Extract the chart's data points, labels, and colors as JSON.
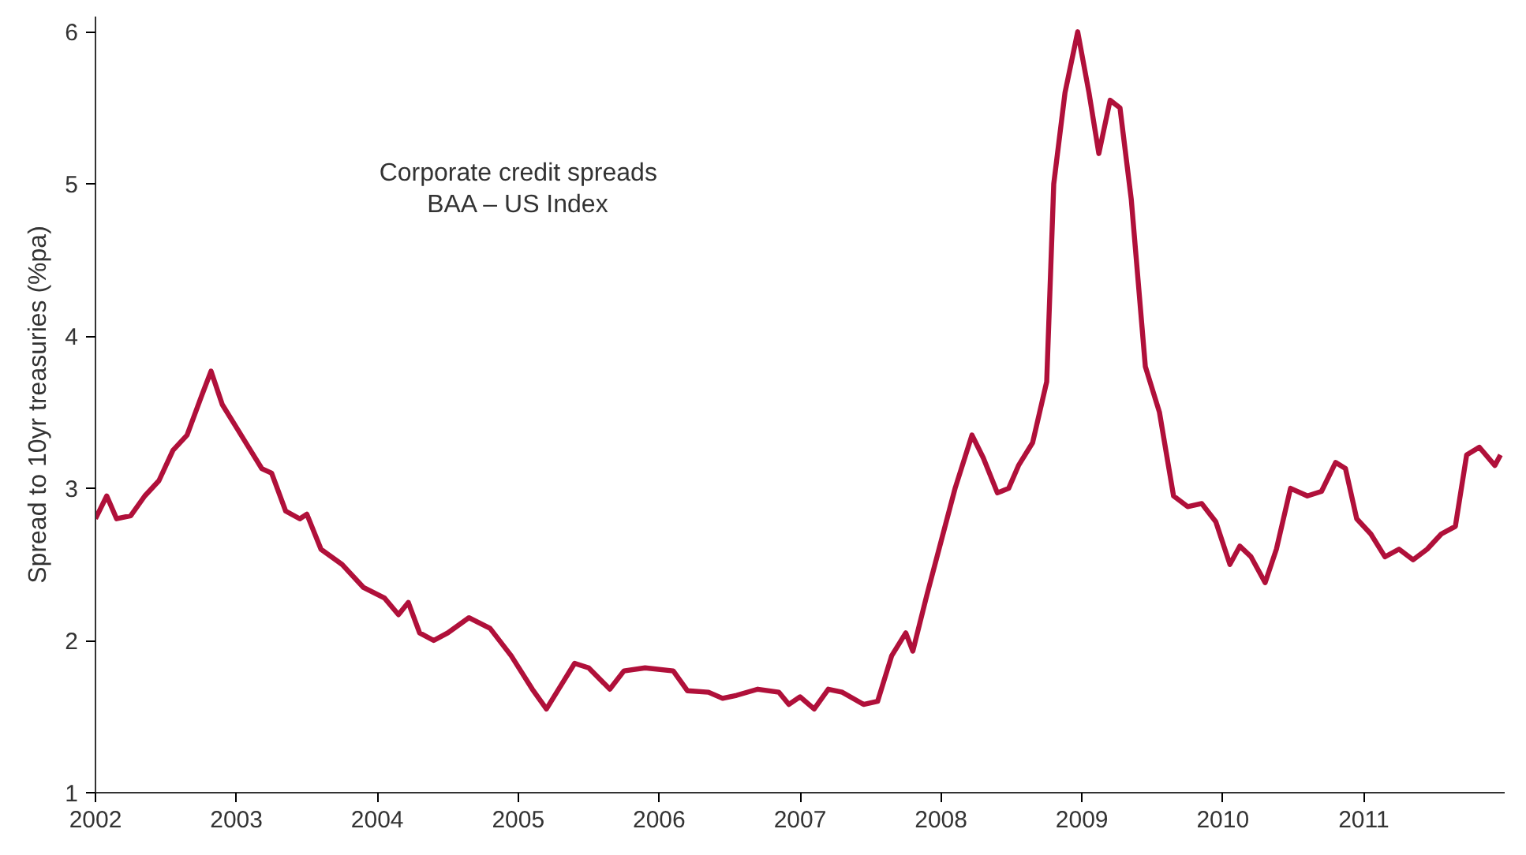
{
  "chart_data": {
    "type": "line",
    "title": "Corporate credit spreads",
    "subtitle": "BAA – US Index",
    "ylabel": "Spread to 10yr treasuries (%pa)",
    "xlim": [
      2002,
      2012
    ],
    "xticks": [
      2002,
      2003,
      2004,
      2005,
      2006,
      2007,
      2008,
      2009,
      2010,
      2011
    ],
    "ylim": [
      1,
      6.1
    ],
    "yticks": [
      1,
      2,
      3,
      4,
      5,
      6
    ],
    "grid": false,
    "series": [
      {
        "color": "#b0103a",
        "x": [
          2002.0,
          2002.08,
          2002.15,
          2002.25,
          2002.35,
          2002.45,
          2002.55,
          2002.65,
          2002.75,
          2002.82,
          2002.9,
          2003.0,
          2003.1,
          2003.18,
          2003.25,
          2003.35,
          2003.45,
          2003.5,
          2003.6,
          2003.75,
          2003.9,
          2004.05,
          2004.15,
          2004.22,
          2004.3,
          2004.4,
          2004.5,
          2004.65,
          2004.8,
          2004.95,
          2005.1,
          2005.2,
          2005.3,
          2005.4,
          2005.5,
          2005.65,
          2005.75,
          2005.9,
          2006.1,
          2006.2,
          2006.35,
          2006.45,
          2006.55,
          2006.7,
          2006.85,
          2006.92,
          2007.0,
          2007.1,
          2007.2,
          2007.3,
          2007.45,
          2007.55,
          2007.65,
          2007.75,
          2007.8,
          2007.9,
          2008.0,
          2008.1,
          2008.22,
          2008.3,
          2008.4,
          2008.48,
          2008.55,
          2008.65,
          2008.75,
          2008.8,
          2008.88,
          2008.97,
          2009.05,
          2009.12,
          2009.2,
          2009.27,
          2009.35,
          2009.45,
          2009.55,
          2009.65,
          2009.75,
          2009.85,
          2009.95,
          2010.05,
          2010.12,
          2010.2,
          2010.3,
          2010.38,
          2010.48,
          2010.6,
          2010.7,
          2010.8,
          2010.87,
          2010.95,
          2011.05,
          2011.15,
          2011.25,
          2011.35,
          2011.45,
          2011.55,
          2011.65,
          2011.73,
          2011.82,
          2011.93,
          2011.97
        ],
        "values": [
          2.8,
          2.95,
          2.8,
          2.82,
          2.95,
          3.05,
          3.25,
          3.35,
          3.6,
          3.77,
          3.55,
          3.4,
          3.25,
          3.13,
          3.1,
          2.85,
          2.8,
          2.83,
          2.6,
          2.5,
          2.35,
          2.28,
          2.17,
          2.25,
          2.05,
          2.0,
          2.05,
          2.15,
          2.08,
          1.9,
          1.68,
          1.55,
          1.7,
          1.85,
          1.82,
          1.68,
          1.8,
          1.82,
          1.8,
          1.67,
          1.66,
          1.62,
          1.64,
          1.68,
          1.66,
          1.58,
          1.63,
          1.55,
          1.68,
          1.66,
          1.58,
          1.6,
          1.9,
          2.05,
          1.93,
          2.3,
          2.65,
          3.0,
          3.35,
          3.2,
          2.97,
          3.0,
          3.15,
          3.3,
          3.7,
          5.0,
          5.6,
          6.0,
          5.6,
          5.2,
          5.55,
          5.5,
          4.9,
          3.8,
          3.5,
          2.95,
          2.88,
          2.9,
          2.78,
          2.5,
          2.62,
          2.55,
          2.38,
          2.6,
          3.0,
          2.95,
          2.98,
          3.17,
          3.13,
          2.8,
          2.7,
          2.55,
          2.6,
          2.53,
          2.6,
          2.7,
          2.75,
          3.22,
          3.27,
          3.15,
          3.22
        ]
      }
    ]
  }
}
